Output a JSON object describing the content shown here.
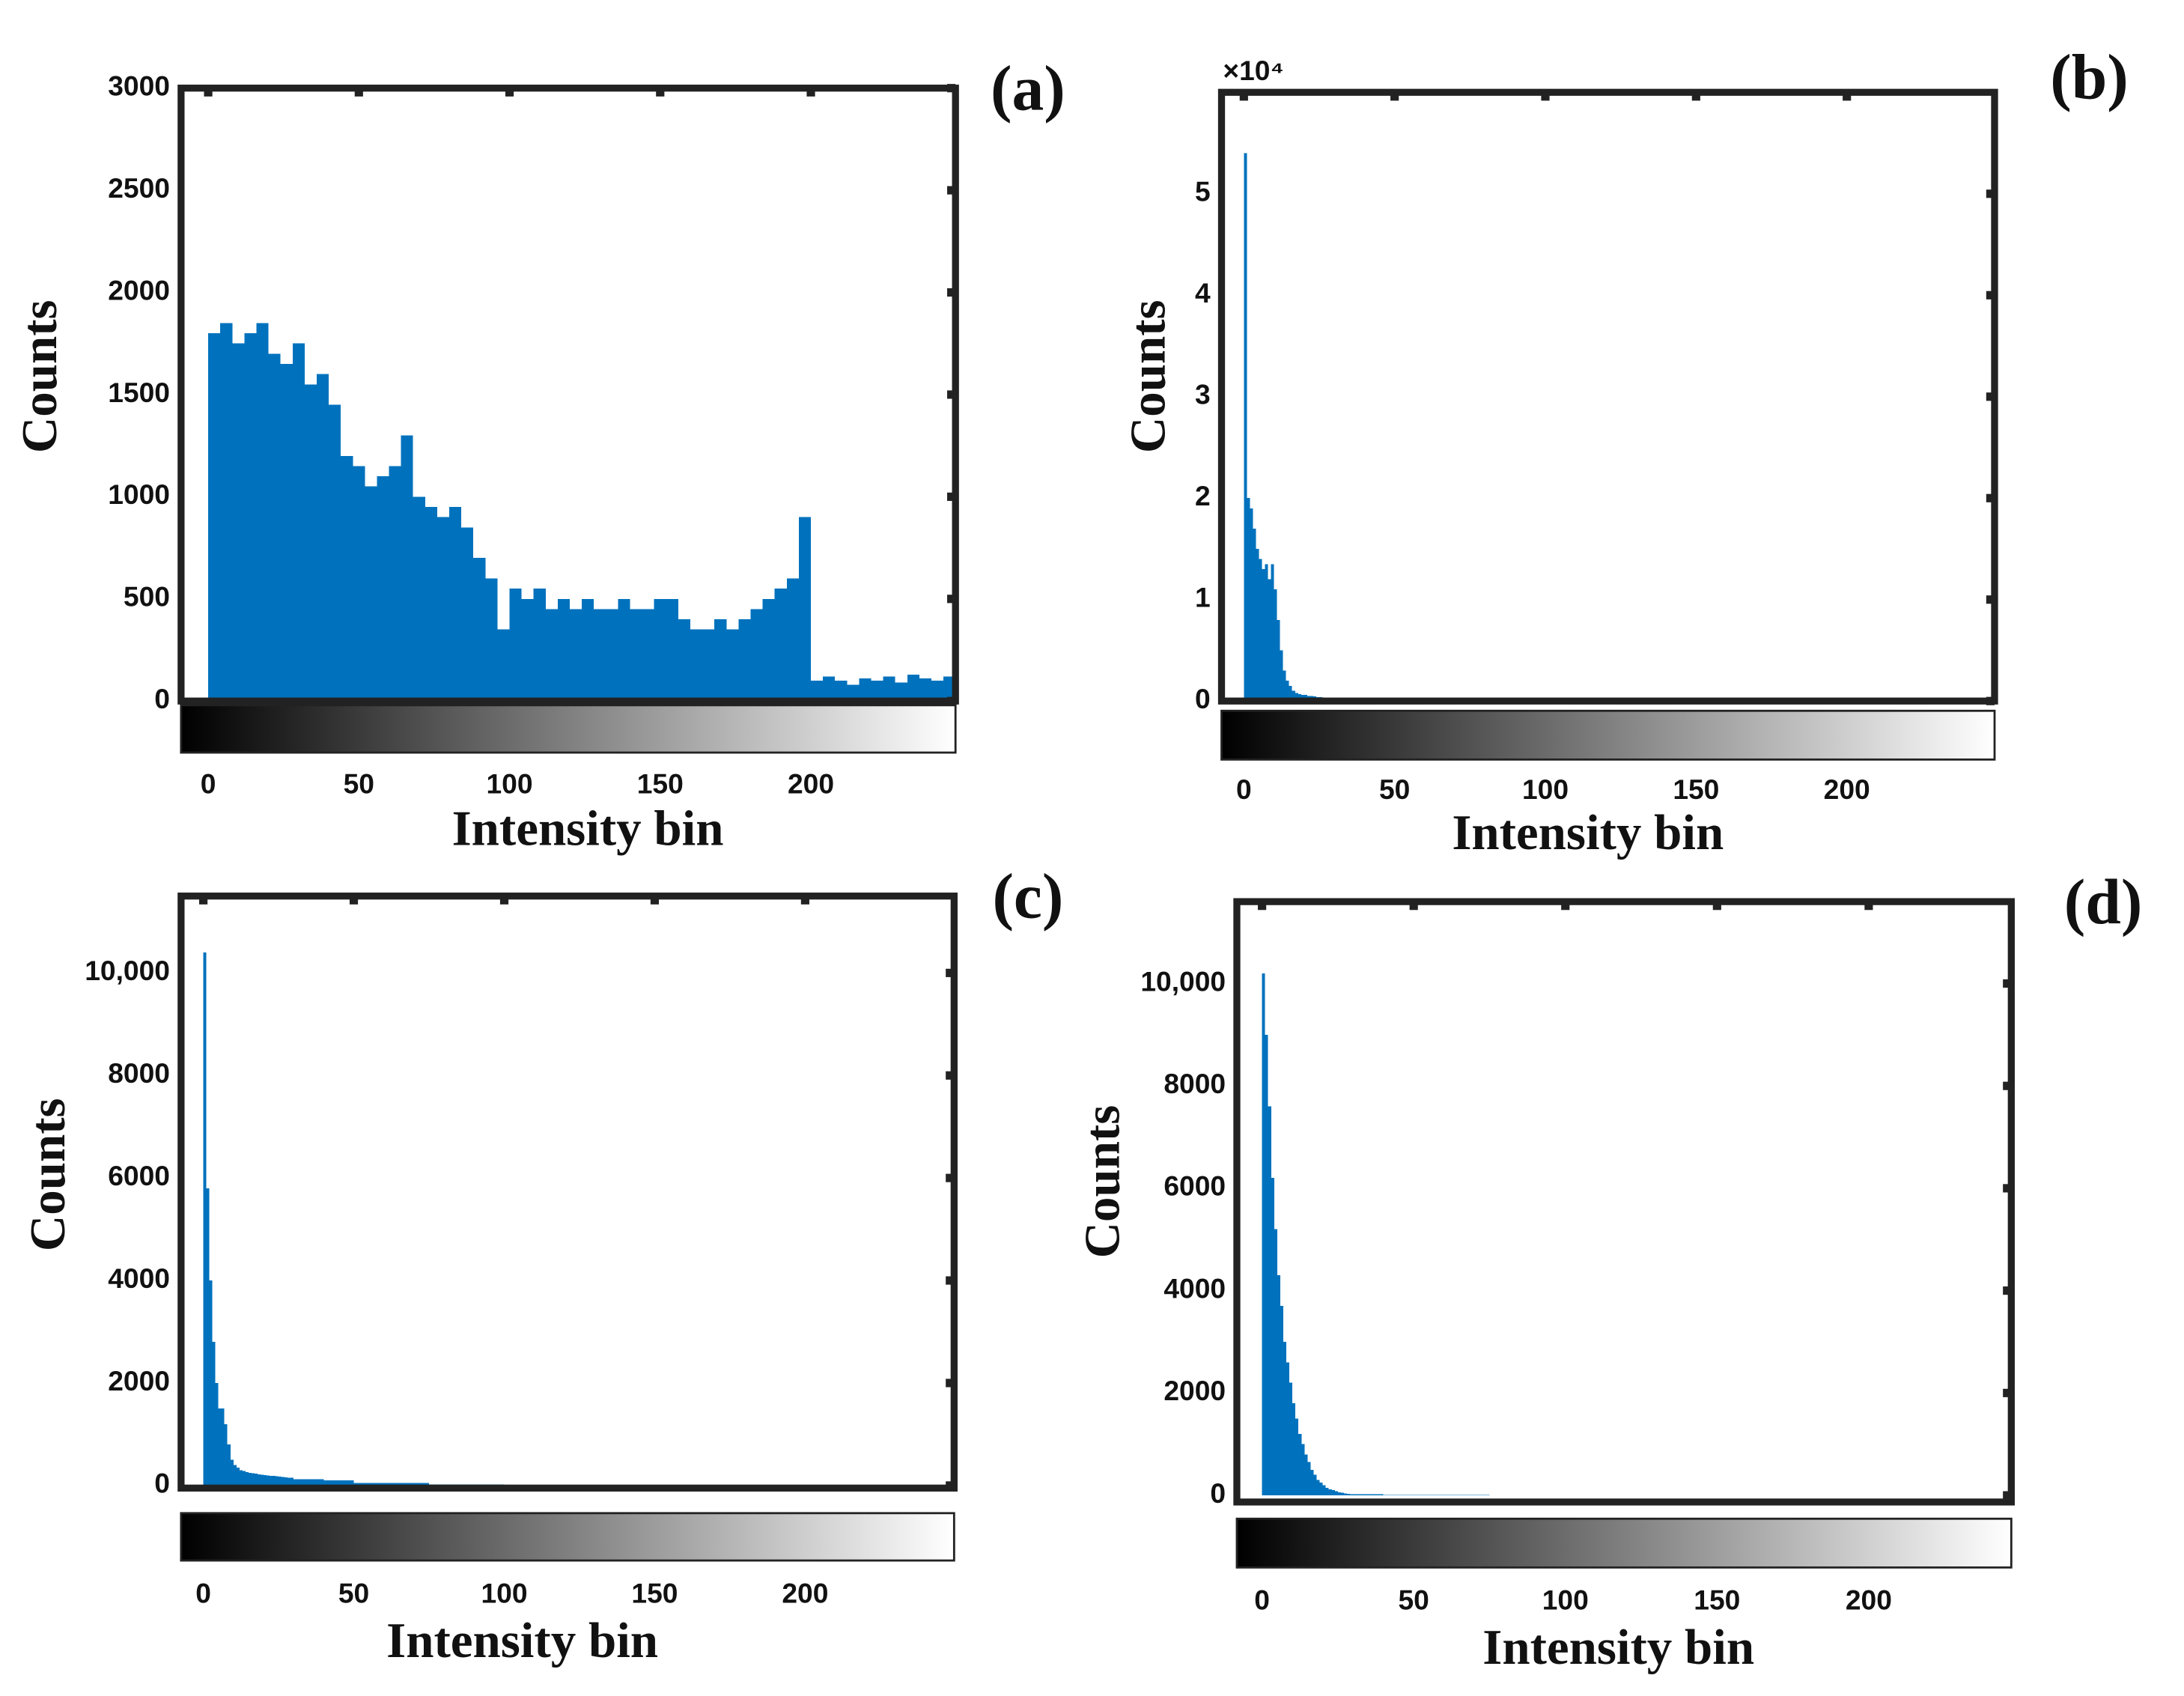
{
  "chart_data": [
    {
      "type": "histogram",
      "label": "(a)",
      "x_label": "Intensity bin",
      "y_label": "Counts",
      "color": "#0072bd",
      "bins": [
        0,
        4,
        8,
        12,
        16,
        20,
        24,
        28,
        32,
        36,
        40,
        44,
        48,
        52,
        56,
        60,
        64,
        68,
        72,
        76,
        80,
        84,
        88,
        92,
        96,
        100,
        104,
        108,
        112,
        116,
        120,
        124,
        128,
        132,
        136,
        140,
        144,
        148,
        152,
        156,
        160,
        164,
        168,
        172,
        176,
        180,
        184,
        188,
        192,
        196,
        200,
        204,
        208,
        212,
        216,
        220,
        224,
        228,
        232,
        236,
        240,
        244,
        248
      ],
      "values": [
        1800,
        1850,
        1750,
        1800,
        1850,
        1700,
        1650,
        1750,
        1550,
        1600,
        1450,
        1200,
        1150,
        1050,
        1100,
        1150,
        1300,
        1000,
        950,
        900,
        950,
        850,
        700,
        600,
        350,
        550,
        500,
        550,
        450,
        500,
        450,
        500,
        450,
        450,
        500,
        450,
        450,
        500,
        500,
        400,
        350,
        350,
        400,
        350,
        400,
        450,
        500,
        550,
        600,
        900,
        100,
        120,
        100,
        80,
        110,
        100,
        120,
        90,
        130,
        110,
        100,
        120
      ],
      "xlim": [
        -9,
        248
      ],
      "ylim": [
        0,
        3000
      ],
      "xticks": [
        0,
        50,
        100,
        150,
        200
      ],
      "yticks": [
        0,
        500,
        1000,
        1500,
        2000,
        2500,
        3000
      ]
    },
    {
      "type": "histogram",
      "label": "(b)",
      "x_label": "Intensity bin",
      "y_label": "Counts",
      "y_exponent": "×10⁴",
      "color": "#0072bd",
      "bins": [
        0,
        1,
        2,
        3,
        4,
        5,
        6,
        7,
        8,
        9,
        10,
        11,
        12,
        13,
        14,
        15,
        16,
        17,
        18,
        19,
        20,
        21,
        22,
        23,
        24,
        25,
        26,
        27,
        28,
        29,
        30,
        40,
        50,
        75,
        100,
        150,
        200,
        248
      ],
      "values": [
        54000,
        20000,
        19000,
        17000,
        15000,
        14000,
        13000,
        13500,
        12000,
        13500,
        11000,
        8000,
        5000,
        3000,
        2000,
        1500,
        1000,
        800,
        700,
        600,
        600,
        500,
        500,
        450,
        400,
        400,
        350,
        300,
        300,
        300,
        250,
        200,
        120,
        80,
        40,
        20,
        10
      ],
      "xlim": [
        -7.4,
        249
      ],
      "ylim": [
        0,
        60000
      ],
      "xticks": [
        0,
        50,
        100,
        150,
        200
      ],
      "yticks": [
        0,
        {
          "value": 10000,
          "label": "1"
        },
        {
          "value": 20000,
          "label": "2"
        },
        {
          "value": 30000,
          "label": "3"
        },
        {
          "value": 40000,
          "label": "4"
        },
        {
          "value": 50000,
          "label": "5"
        }
      ]
    },
    {
      "type": "histogram",
      "label": "(c)",
      "x_label": "Intensity bin",
      "y_label": "Counts",
      "color": "#0072bd",
      "bins": [
        0,
        1,
        2,
        3,
        4,
        5,
        6,
        7,
        8,
        9,
        10,
        11,
        12,
        13,
        14,
        15,
        16,
        17,
        18,
        19,
        20,
        21,
        22,
        23,
        24,
        25,
        26,
        27,
        28,
        29,
        30,
        40,
        50,
        75,
        100,
        150,
        200,
        248
      ],
      "values": [
        10400,
        5800,
        4000,
        2800,
        2000,
        1500,
        1500,
        1200,
        800,
        500,
        400,
        350,
        300,
        280,
        260,
        250,
        240,
        230,
        220,
        210,
        200,
        195,
        190,
        185,
        180,
        175,
        170,
        160,
        155,
        150,
        120,
        100,
        50,
        20,
        5,
        0,
        0
      ],
      "xlim": [
        -7.4,
        249.5
      ],
      "ylim": [
        -50,
        11500
      ],
      "xticks": [
        0,
        50,
        100,
        150,
        200
      ],
      "yticks": [
        0,
        2000,
        4000,
        6000,
        8000,
        {
          "value": 10000,
          "label": "10,000"
        }
      ]
    },
    {
      "type": "histogram",
      "label": "(d)",
      "x_label": "Intensity bin",
      "y_label": "Counts",
      "color": "#0072bd",
      "bins": [
        0,
        1,
        2,
        3,
        4,
        5,
        6,
        7,
        8,
        9,
        10,
        11,
        12,
        13,
        14,
        15,
        16,
        17,
        18,
        19,
        20,
        21,
        22,
        23,
        24,
        25,
        26,
        27,
        28,
        29,
        30,
        40,
        50,
        75,
        100,
        150,
        200,
        248
      ],
      "values": [
        10200,
        9000,
        7600,
        6200,
        5200,
        4300,
        3700,
        3000,
        2600,
        2200,
        1800,
        1500,
        1200,
        1000,
        800,
        650,
        500,
        400,
        300,
        250,
        200,
        150,
        120,
        100,
        80,
        60,
        50,
        40,
        30,
        25,
        20,
        10,
        5,
        2,
        1,
        0,
        0
      ],
      "xlim": [
        -8.3,
        247
      ],
      "ylim": [
        -130,
        11600
      ],
      "xticks": [
        0,
        50,
        100,
        150,
        200
      ],
      "yticks": [
        0,
        2000,
        4000,
        6000,
        8000,
        {
          "value": 10000,
          "label": "10,000"
        }
      ]
    }
  ]
}
